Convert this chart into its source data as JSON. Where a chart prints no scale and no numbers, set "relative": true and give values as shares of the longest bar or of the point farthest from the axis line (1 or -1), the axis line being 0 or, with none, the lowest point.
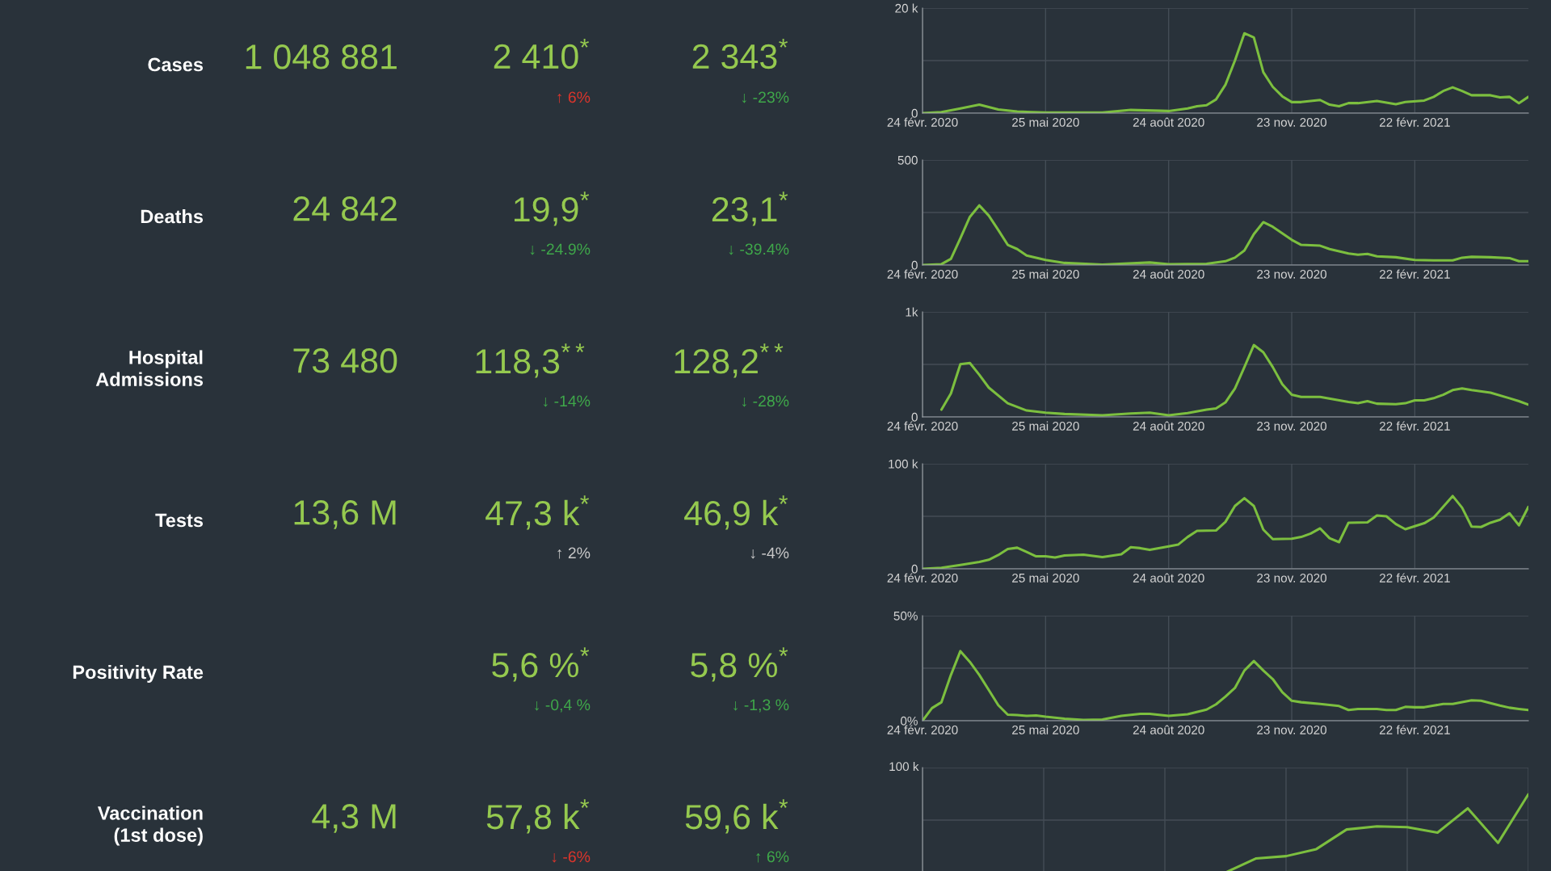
{
  "chart_data": [
    {
      "type": "other",
      "title": "Cases",
      "annotations": [
        "1 048 881",
        "2 410$^{*}$",
        "↑ 6%",
        "2 343$^{*}$",
        "↓ -23%"
      ],
      "colors": [
        "#95c94f",
        "#95c94f",
        "#d9352c",
        "#95c94f",
        "#3fa84a"
      ]
    },
    {
      "type": "line",
      "x": [
        "2020-02-24",
        "2020-03-09",
        "2020-03-23",
        "2020-04-06",
        "2020-04-20",
        "2020-05-04",
        "2020-05-25",
        "2020-07-06",
        "2020-07-27",
        "2020-08-24",
        "2020-09-07",
        "2020-09-14",
        "2020-09-21",
        "2020-09-28",
        "2020-10-05",
        "2020-10-12",
        "2020-10-19",
        "2020-10-26",
        "2020-11-02",
        "2020-11-09",
        "2020-11-16",
        "2020-11-23",
        "2020-11-30",
        "2020-12-14",
        "2020-12-21",
        "2020-12-28",
        "2021-01-04",
        "2021-01-11",
        "2021-01-25",
        "2021-02-08",
        "2021-02-15",
        "2021-03-01",
        "2021-03-08",
        "2021-03-15",
        "2021-03-22",
        "2021-03-29",
        "2021-04-05",
        "2021-04-19",
        "2021-04-26",
        "2021-05-03",
        "2021-05-10",
        "2021-05-17"
      ],
      "series": [
        {
          "color": "#7cbf3f",
          "values": [
            0,
            200,
            900,
            1600,
            700,
            300,
            100,
            100,
            600,
            400,
            900,
            1300,
            1500,
            2600,
            5400,
            10000,
            15200,
            14400,
            7800,
            5000,
            3200,
            2100,
            2100,
            2500,
            1600,
            1300,
            1900,
            1900,
            2300,
            1700,
            2100,
            2400,
            3100,
            4200,
            4900,
            4200,
            3400,
            3400,
            3000,
            3100,
            1900,
            3100
          ]
        }
      ],
      "xlim": [
        "2020-02-24",
        "2021-05-17"
      ],
      "xticks": [
        {
          "value": "2020-02-24",
          "label": "24 févr. 2020"
        },
        {
          "value": "2020-05-25",
          "label": "25 mai 2020"
        },
        {
          "value": "2020-08-24",
          "label": "24 août 2020"
        },
        {
          "value": "2020-11-23",
          "label": "23 nov. 2020"
        },
        {
          "value": "2021-02-22",
          "label": "22 févr. 2021"
        }
      ],
      "ylim": [
        0,
        20000
      ],
      "yticks": [
        0,
        {
          "value": 10000,
          "label": null
        },
        {
          "value": 20000,
          "label": "20 k"
        }
      ],
      "grid": true
    },
    {
      "type": "other",
      "title": "Deaths",
      "annotations": [
        "24 842",
        "19,9$^{*}$",
        "↓ -24.9%",
        "23,1$^{*}$",
        "↓ -39.4%"
      ],
      "colors": [
        "#95c94f",
        "#95c94f",
        "#3fa84a",
        "#95c94f",
        "#3fa84a"
      ]
    },
    {
      "type": "line",
      "x": [
        "2020-02-24",
        "2020-03-09",
        "2020-03-16",
        "2020-03-23",
        "2020-03-30",
        "2020-04-06",
        "2020-04-13",
        "2020-04-20",
        "2020-04-27",
        "2020-05-04",
        "2020-05-11",
        "2020-05-25",
        "2020-06-08",
        "2020-07-06",
        "2020-08-10",
        "2020-08-24",
        "2020-09-21",
        "2020-10-05",
        "2020-10-12",
        "2020-10-19",
        "2020-10-26",
        "2020-11-02",
        "2020-11-09",
        "2020-11-23",
        "2020-11-30",
        "2020-12-14",
        "2020-12-21",
        "2021-01-04",
        "2021-01-11",
        "2021-01-18",
        "2021-01-25",
        "2021-02-08",
        "2021-02-22",
        "2021-03-08",
        "2021-03-22",
        "2021-03-29",
        "2021-04-05",
        "2021-04-19",
        "2021-05-03",
        "2021-05-10",
        "2021-05-17"
      ],
      "series": [
        {
          "color": "#7cbf3f",
          "values": [
            0,
            4,
            29,
            127,
            229,
            284,
            235,
            167,
            96,
            76,
            45,
            24,
            10,
            2,
            12,
            4,
            6,
            18,
            35,
            69,
            147,
            204,
            182,
            120,
            96,
            92,
            76,
            55,
            49,
            53,
            41,
            37,
            24,
            22,
            22,
            35,
            39,
            37,
            33,
            18,
            18
          ]
        }
      ],
      "xlim": [
        "2020-02-24",
        "2021-05-17"
      ],
      "xticks": [
        {
          "value": "2020-02-24",
          "label": "24 févr. 2020"
        },
        {
          "value": "2020-05-25",
          "label": "25 mai 2020"
        },
        {
          "value": "2020-08-24",
          "label": "24 août 2020"
        },
        {
          "value": "2020-11-23",
          "label": "23 nov. 2020"
        },
        {
          "value": "2021-02-22",
          "label": "22 févr. 2021"
        }
      ],
      "ylim": [
        0,
        500
      ],
      "yticks": [
        0,
        {
          "value": 250,
          "label": null
        },
        500
      ],
      "grid": true
    },
    {
      "type": "other",
      "title": "Hospital\nAdmissions",
      "annotations": [
        "73 480",
        "118,3$^{**}$",
        "↓ -14%",
        "128,2$^{**}$",
        "↓ -28%"
      ],
      "colors": [
        "#95c94f",
        "#95c94f",
        "#3fa84a",
        "#95c94f",
        "#3fa84a"
      ]
    },
    {
      "type": "line",
      "x": [
        "2020-03-09",
        "2020-03-16",
        "2020-03-23",
        "2020-03-30",
        "2020-04-06",
        "2020-04-13",
        "2020-04-27",
        "2020-05-11",
        "2020-05-25",
        "2020-06-08",
        "2020-07-06",
        "2020-07-27",
        "2020-08-10",
        "2020-08-24",
        "2020-09-07",
        "2020-09-21",
        "2020-09-28",
        "2020-10-05",
        "2020-10-12",
        "2020-10-19",
        "2020-10-26",
        "2020-11-02",
        "2020-11-09",
        "2020-11-16",
        "2020-11-23",
        "2020-11-30",
        "2020-12-14",
        "2021-01-04",
        "2021-01-11",
        "2021-01-18",
        "2021-01-25",
        "2021-02-08",
        "2021-02-15",
        "2021-02-22",
        "2021-03-01",
        "2021-03-08",
        "2021-03-15",
        "2021-03-22",
        "2021-03-29",
        "2021-04-05",
        "2021-04-19",
        "2021-05-03",
        "2021-05-10",
        "2021-05-17"
      ],
      "series": [
        {
          "color": "#7cbf3f",
          "values": [
            69,
            223,
            502,
            514,
            401,
            279,
            130,
            61,
            40,
            28,
            16,
            32,
            40,
            16,
            36,
            69,
            81,
            138,
            271,
            474,
            684,
            615,
            474,
            312,
            211,
            190,
            190,
            142,
            130,
            150,
            126,
            121,
            130,
            158,
            158,
            178,
            211,
            255,
            271,
            255,
            231,
            178,
            150,
            117
          ]
        }
      ],
      "xlim": [
        "2020-02-24",
        "2021-05-17"
      ],
      "xticks": [
        {
          "value": "2020-02-24",
          "label": "24 févr. 2020"
        },
        {
          "value": "2020-05-25",
          "label": "25 mai 2020"
        },
        {
          "value": "2020-08-24",
          "label": "24 août 2020"
        },
        {
          "value": "2020-11-23",
          "label": "23 nov. 2020"
        },
        {
          "value": "2021-02-22",
          "label": "22 févr. 2021"
        }
      ],
      "ylim": [
        0,
        1000
      ],
      "yticks": [
        0,
        {
          "value": 500,
          "label": null
        },
        {
          "value": 1000,
          "label": "1k"
        }
      ],
      "grid": true
    },
    {
      "type": "other",
      "title": "Tests",
      "annotations": [
        "13,6 M",
        "47,3 k$^{*}$",
        "↑ 2%",
        "46,9 k$^{*}$",
        "↓ -4%"
      ],
      "colors": [
        "#95c94f",
        "#95c94f",
        "#c9c9c9",
        "#95c94f",
        "#c9c9c9"
      ]
    },
    {
      "type": "line",
      "x": [
        "2020-02-24",
        "2020-03-09",
        "2020-03-23",
        "2020-04-06",
        "2020-04-13",
        "2020-04-20",
        "2020-04-27",
        "2020-05-04",
        "2020-05-11",
        "2020-05-18",
        "2020-05-25",
        "2020-06-01",
        "2020-06-08",
        "2020-06-22",
        "2020-06-29",
        "2020-07-06",
        "2020-07-20",
        "2020-07-27",
        "2020-08-03",
        "2020-08-10",
        "2020-08-24",
        "2020-08-31",
        "2020-09-07",
        "2020-09-14",
        "2020-09-28",
        "2020-10-05",
        "2020-10-12",
        "2020-10-19",
        "2020-10-26",
        "2020-11-02",
        "2020-11-09",
        "2020-11-23",
        "2020-11-30",
        "2020-12-07",
        "2020-12-14",
        "2020-12-21",
        "2020-12-28",
        "2021-01-04",
        "2021-01-18",
        "2021-01-25",
        "2021-02-01",
        "2021-02-08",
        "2021-02-15",
        "2021-02-22",
        "2021-03-01",
        "2021-03-08",
        "2021-03-15",
        "2021-03-22",
        "2021-03-29",
        "2021-04-05",
        "2021-04-12",
        "2021-04-19",
        "2021-04-26",
        "2021-05-03",
        "2021-05-10",
        "2021-05-17"
      ],
      "series": [
        {
          "color": "#7cbf3f",
          "values": [
            0,
            1000,
            3700,
            6600,
            8600,
            13100,
            18900,
            20100,
            16000,
            11900,
            11900,
            10700,
            12700,
            13500,
            12300,
            11100,
            13900,
            20500,
            19700,
            18000,
            21300,
            23000,
            30300,
            36100,
            36500,
            44700,
            59800,
            67200,
            59800,
            37300,
            28300,
            28700,
            30300,
            33600,
            38500,
            29100,
            25400,
            43900,
            44300,
            50800,
            50000,
            42600,
            37700,
            40600,
            43400,
            48800,
            59000,
            69300,
            58200,
            40200,
            39800,
            43900,
            46700,
            52900,
            41400,
            59000
          ]
        }
      ],
      "xlim": [
        "2020-02-24",
        "2021-05-17"
      ],
      "xticks": [
        {
          "value": "2020-02-24",
          "label": "24 févr. 2020"
        },
        {
          "value": "2020-05-25",
          "label": "25 mai 2020"
        },
        {
          "value": "2020-08-24",
          "label": "24 août 2020"
        },
        {
          "value": "2020-11-23",
          "label": "23 nov. 2020"
        },
        {
          "value": "2021-02-22",
          "label": "22 févr. 2021"
        }
      ],
      "ylim": [
        0,
        100000
      ],
      "yticks": [
        0,
        {
          "value": 50000,
          "label": null
        },
        {
          "value": 100000,
          "label": "100 k"
        }
      ],
      "grid": true
    },
    {
      "type": "other",
      "title": "Positivity Rate",
      "annotations": [
        null,
        "5,6 %$^{*}$",
        "↓ -0,4 %",
        "5,8 %$^{*}$",
        "↓ -1,3 %"
      ],
      "colors": [
        null,
        "#95c94f",
        "#3fa84a",
        "#95c94f",
        "#3fa84a"
      ]
    },
    {
      "type": "line",
      "x": [
        "2020-02-24",
        "2020-03-02",
        "2020-03-09",
        "2020-03-16",
        "2020-03-23",
        "2020-03-30",
        "2020-04-06",
        "2020-04-13",
        "2020-04-20",
        "2020-04-27",
        "2020-05-04",
        "2020-05-11",
        "2020-05-18",
        "2020-05-25",
        "2020-06-08",
        "2020-06-22",
        "2020-07-06",
        "2020-07-20",
        "2020-08-03",
        "2020-08-10",
        "2020-08-24",
        "2020-09-07",
        "2020-09-21",
        "2020-09-28",
        "2020-10-05",
        "2020-10-12",
        "2020-10-19",
        "2020-10-26",
        "2020-11-02",
        "2020-11-09",
        "2020-11-16",
        "2020-11-23",
        "2020-11-30",
        "2020-12-14",
        "2020-12-28",
        "2021-01-04",
        "2021-01-11",
        "2021-01-25",
        "2021-02-01",
        "2021-02-08",
        "2021-02-15",
        "2021-02-22",
        "2021-03-01",
        "2021-03-08",
        "2021-03-15",
        "2021-03-22",
        "2021-03-29",
        "2021-04-05",
        "2021-04-12",
        "2021-04-19",
        "2021-04-26",
        "2021-05-03",
        "2021-05-10",
        "2021-05-17"
      ],
      "series": [
        {
          "color": "#7cbf3f",
          "values": [
            0,
            6.0,
            8.8,
            21.8,
            33.1,
            28.0,
            21.8,
            14.6,
            7.4,
            2.9,
            2.7,
            2.3,
            2.5,
            1.9,
            1.0,
            0.4,
            0.6,
            2.3,
            3.3,
            3.3,
            2.3,
            3.1,
            5.3,
            7.8,
            11.5,
            15.6,
            23.9,
            28.4,
            23.9,
            19.8,
            13.6,
            9.5,
            8.8,
            8.0,
            7.0,
            5.1,
            5.6,
            5.6,
            5.1,
            5.1,
            6.6,
            6.4,
            6.4,
            7.2,
            8.0,
            8.0,
            8.8,
            9.7,
            9.5,
            8.4,
            7.2,
            6.2,
            5.6,
            5.1
          ]
        }
      ],
      "xlim": [
        "2020-02-24",
        "2021-05-17"
      ],
      "xticks": [
        {
          "value": "2020-02-24",
          "label": "24 févr. 2020"
        },
        {
          "value": "2020-05-25",
          "label": "25 mai 2020"
        },
        {
          "value": "2020-08-24",
          "label": "24 août 2020"
        },
        {
          "value": "2020-11-23",
          "label": "23 nov. 2020"
        },
        {
          "value": "2021-02-22",
          "label": "22 févr. 2021"
        }
      ],
      "ylim": [
        0,
        50
      ],
      "yticks": [
        {
          "value": 0,
          "label": "0%"
        },
        {
          "value": 25,
          "label": null
        },
        {
          "value": 50,
          "label": "50%"
        }
      ],
      "grid": true
    },
    {
      "type": "other",
      "title": "Vaccination\n(1st dose)",
      "annotations": [
        "4,3 M",
        "57,8 k$^{*}$",
        "↓ -6%",
        "59,6 k$^{*}$",
        "↑ 6%"
      ],
      "colors": [
        "#95c94f",
        "#95c94f",
        "#d9352c",
        "#95c94f",
        "#3fa84a"
      ]
    },
    {
      "type": "line",
      "categories": [
        null,
        null,
        null,
        null,
        null,
        null,
        null,
        null,
        null,
        null,
        null,
        null,
        null,
        null,
        null,
        null,
        null,
        null,
        null,
        null,
        null
      ],
      "series": [
        {
          "color": "#7cbf3f",
          "values": [
            null,
            null,
            null,
            null,
            null,
            null,
            null,
            null,
            null,
            null,
            0,
            0.18,
            0.21,
            0.3,
            0.55,
            0.59,
            0.58,
            0.51,
            0.82,
            0.38,
            1
          ]
        }
      ],
      "relative": true,
      "annotations": [
        "100 k"
      ],
      "grid": true
    }
  ]
}
